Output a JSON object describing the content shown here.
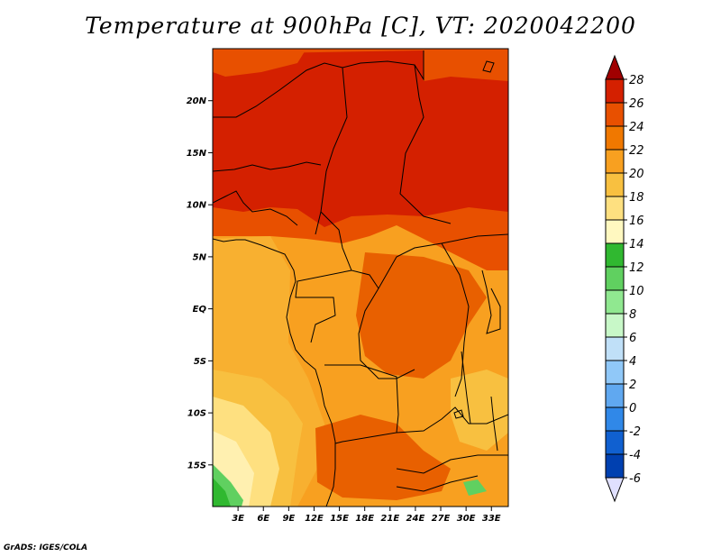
{
  "title": "Temperature at 900hPa [C], VT: 2020042200",
  "credit": "GrADS: IGES/COLA",
  "map": {
    "lat_range": [
      -19,
      25
    ],
    "lon_range": [
      0,
      35
    ],
    "lat_ticks": [
      {
        "value": 20,
        "label": "20N"
      },
      {
        "value": 15,
        "label": "15N"
      },
      {
        "value": 10,
        "label": "10N"
      },
      {
        "value": 5,
        "label": "5N"
      },
      {
        "value": 0,
        "label": "EQ"
      },
      {
        "value": -5,
        "label": "5S"
      },
      {
        "value": -10,
        "label": "10S"
      },
      {
        "value": -15,
        "label": "15S"
      }
    ],
    "lon_ticks": [
      {
        "value": 3,
        "label": "3E"
      },
      {
        "value": 6,
        "label": "6E"
      },
      {
        "value": 9,
        "label": "9E"
      },
      {
        "value": 12,
        "label": "12E"
      },
      {
        "value": 15,
        "label": "15E"
      },
      {
        "value": 18,
        "label": "18E"
      },
      {
        "value": 21,
        "label": "21E"
      },
      {
        "value": 24,
        "label": "24E"
      },
      {
        "value": 27,
        "label": "27E"
      },
      {
        "value": 30,
        "label": "30E"
      },
      {
        "value": 33,
        "label": "33E"
      }
    ]
  },
  "colorbar": {
    "labels": [
      "28",
      "26",
      "24",
      "22",
      "20",
      "18",
      "16",
      "14",
      "12",
      "10",
      "8",
      "6",
      "4",
      "2",
      "0",
      "-2",
      "-4",
      "-6"
    ],
    "colors": [
      "#a00000",
      "#d42000",
      "#e85000",
      "#f07800",
      "#f8a020",
      "#f8c040",
      "#fee080",
      "#fff8c0",
      "#30b830",
      "#60d060",
      "#90e890",
      "#c8f8c8",
      "#c0e0f8",
      "#90c8f8",
      "#60a8f0",
      "#3088e8",
      "#1060d0",
      "#0040b0",
      "#002080",
      "#000060",
      "#e0e0ff"
    ]
  }
}
